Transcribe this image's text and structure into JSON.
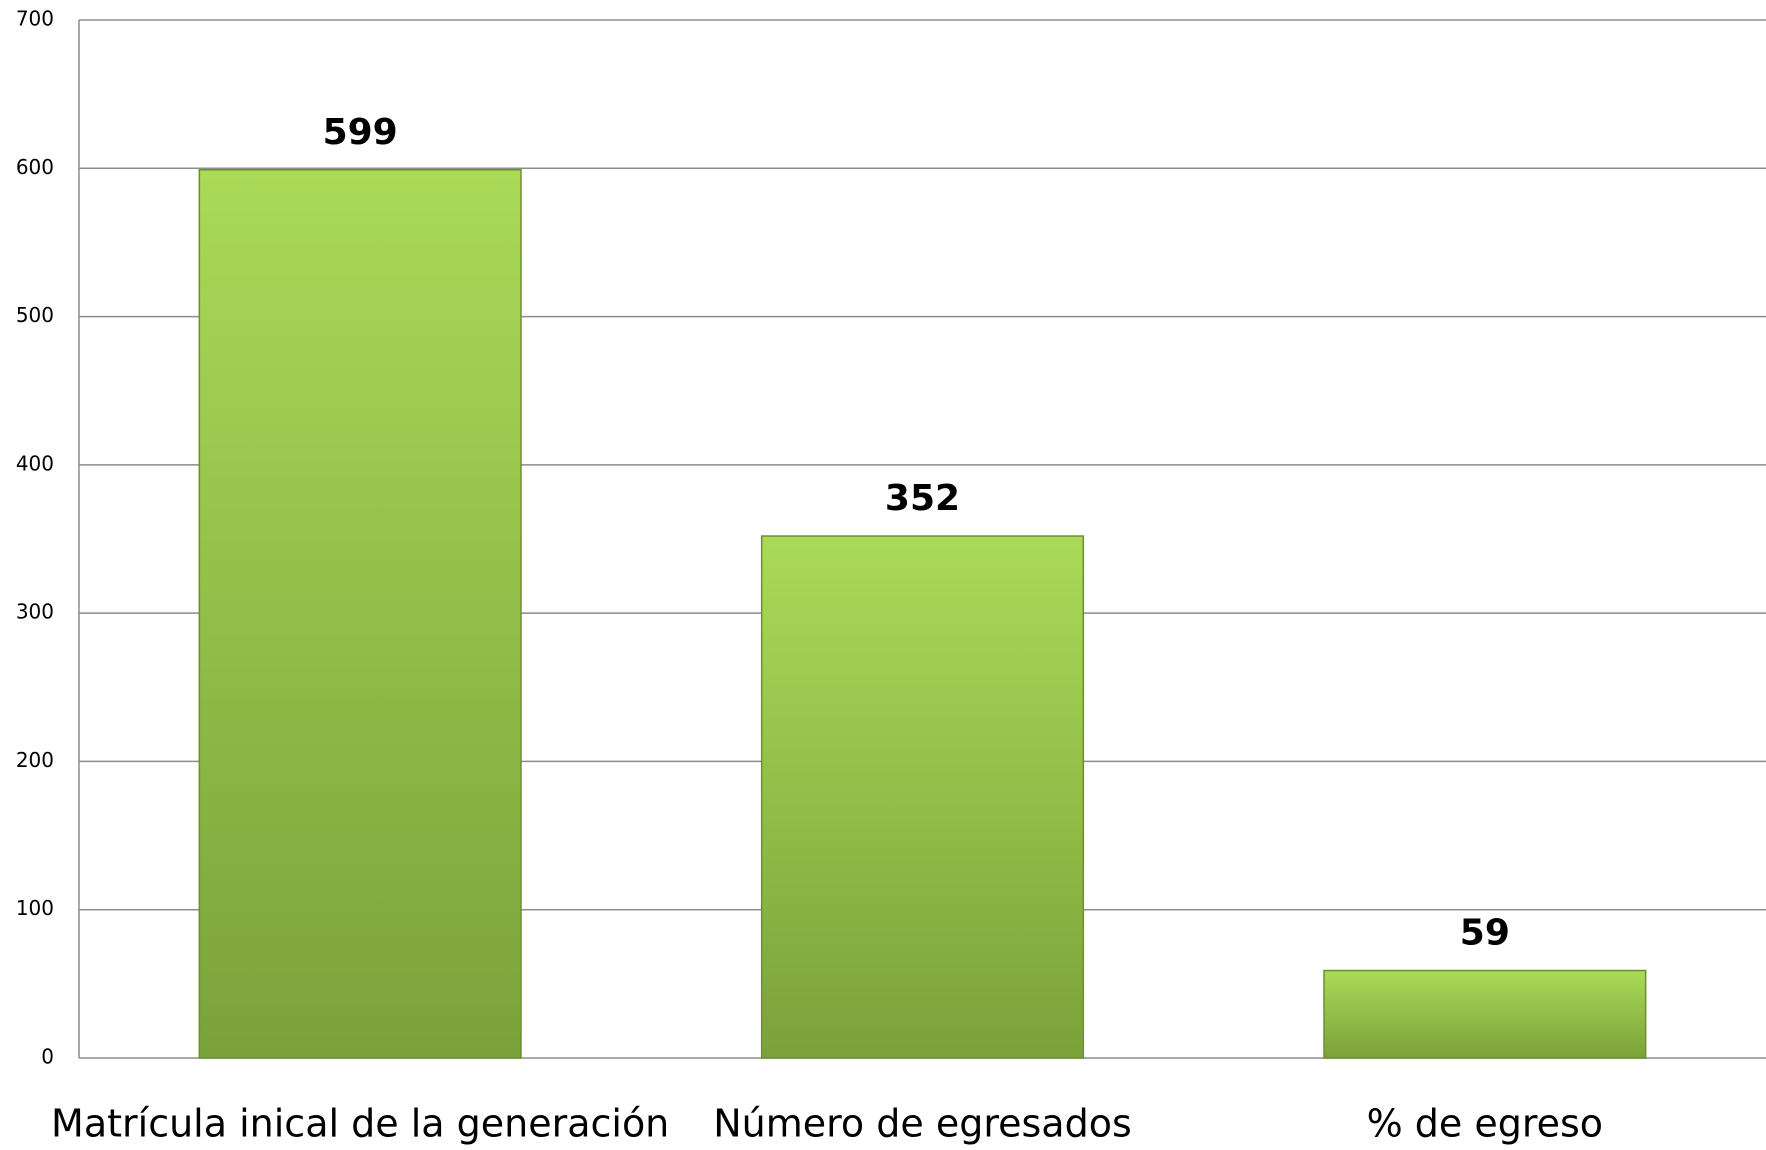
{
  "chart_data": {
    "type": "bar",
    "categories": [
      "Matrícula inical de la generación",
      "Número de egresados",
      "% de egreso"
    ],
    "values": [
      599,
      352,
      59
    ],
    "color": "#99c84a",
    "ylim": [
      0,
      700
    ],
    "yticks": [
      0,
      100,
      200,
      300,
      400,
      500,
      600,
      700
    ],
    "grid": true
  }
}
